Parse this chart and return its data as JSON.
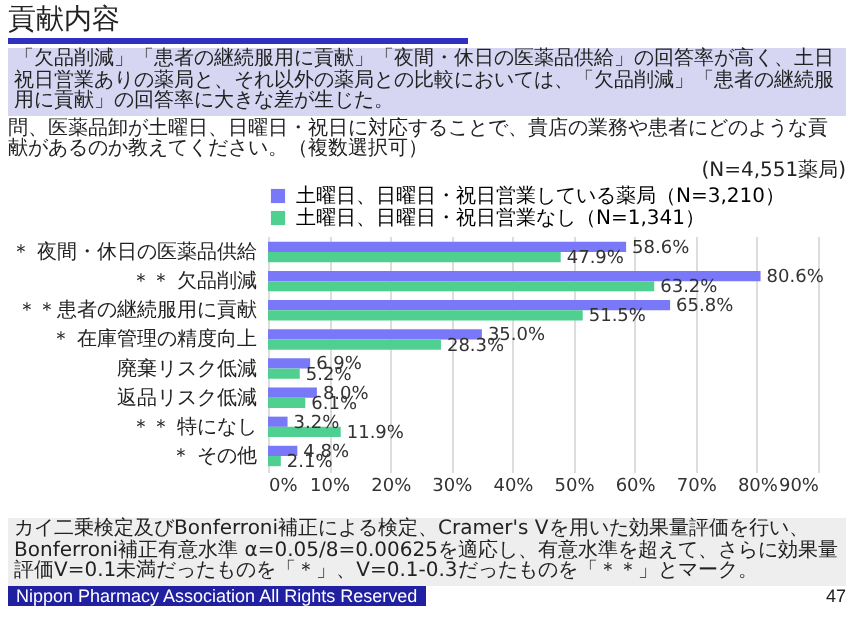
{
  "chart_data": {
    "type": "bar",
    "orientation": "horizontal",
    "title": "貢献内容",
    "subtitle": "「欠品削減」「患者の継続服用に貢献」「夜間・休日の医薬品供給」の回答率が高く、土日祝日営業ありの薬局と、それ以外の薬局との比較においては、「欠品削減」「患者の継続服用に貢献」の回答率に大きな差が生じた。",
    "annotations": [
      "問、医薬品卸が土曜日、日曜日・祝日に対応することで、貴店の業務や患者にどのような貢献があるのか教えてください。（複数選択可）",
      "(N=4,551薬局)",
      "カイ二乗検定及びBonferroni補正による検定、Cramer's Vを用いた効果量評価を行い、Bonferroni補正有意水準 α=0.05/8=0.00625を適応し、有意水準を超えて、さらに効果量評価V=0.1未満だったものを「＊」、V=0.1-0.3だったものを「＊＊」とマーク。",
      "Nippon Pharmacy Association All Rights Reserved",
      "47"
    ],
    "categories": [
      "＊ 夜間・休日の医薬品供給",
      "＊＊ 欠品削減",
      "＊＊患者の継続服用に貢献",
      "＊ 在庫管理の精度向上",
      "廃棄リスク低減",
      "返品リスク低減",
      "＊＊ 特になし",
      "＊ その他"
    ],
    "series": [
      {
        "name": "土曜日、日曜日・祝日営業している薬局（N=3,210）",
        "color": "#7878f8",
        "values": [
          58.6,
          80.6,
          65.8,
          35.0,
          6.9,
          8.0,
          3.2,
          4.8
        ],
        "value_labels": [
          "58.6%",
          "80.6%",
          "65.8%",
          "35.0%",
          "6.9%",
          "8.0%",
          "3.2%",
          "4.8%"
        ]
      },
      {
        "name": "土曜日、日曜日・祝日営業なし（N=1,341）",
        "color": "#50d090",
        "values": [
          47.9,
          63.2,
          51.5,
          28.3,
          5.2,
          6.1,
          11.9,
          2.1
        ],
        "value_labels": [
          "47.9%",
          "63.2%",
          "51.5%",
          "28.3%",
          "5.2%",
          "6.1%",
          "11.9%",
          "2.1%"
        ]
      }
    ],
    "xlim": [
      0,
      90
    ],
    "xticks": [
      {
        "value": 0,
        "label": "0%"
      },
      {
        "value": 10,
        "label": "10%"
      },
      {
        "value": 20,
        "label": "20%"
      },
      {
        "value": 30,
        "label": "30%"
      },
      {
        "value": 40,
        "label": "40%"
      },
      {
        "value": 50,
        "label": "50%"
      },
      {
        "value": 60,
        "label": "60%"
      },
      {
        "value": 70,
        "label": "70%"
      },
      {
        "value": 80,
        "label": "80%"
      },
      {
        "value": 90,
        "label": "90%"
      }
    ],
    "grid": "x",
    "legend": "top"
  }
}
